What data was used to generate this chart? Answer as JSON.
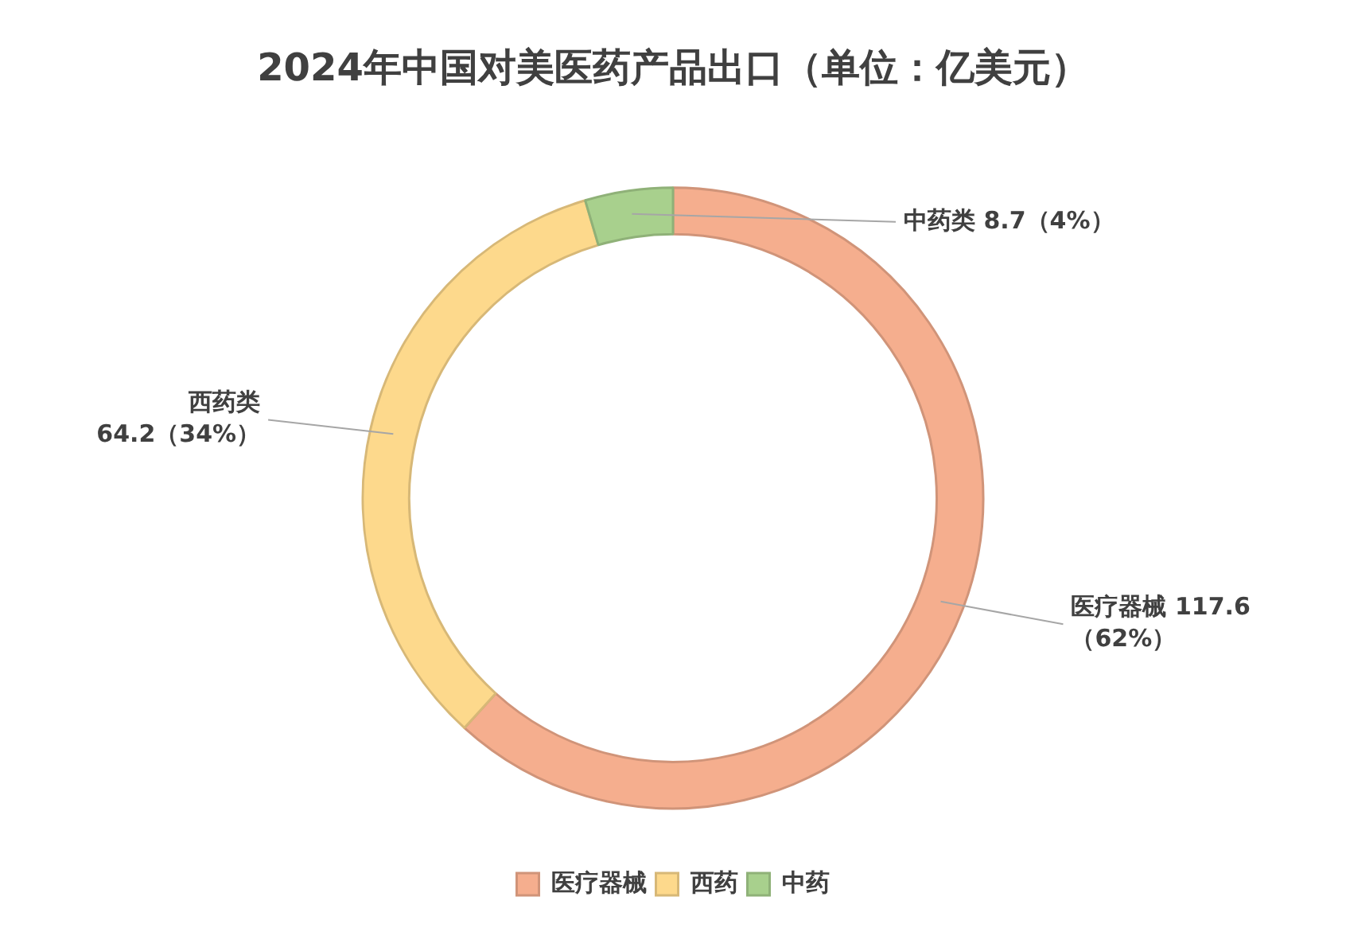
{
  "chart_data": {
    "type": "donut",
    "title": "2024年中国对美医药产品出口（单位：亿美元）",
    "categories": [
      "医疗器械",
      "西药",
      "中药"
    ],
    "values": [
      117.6,
      64.2,
      8.7
    ],
    "colors": [
      "#f5ae8e",
      "#fdd98c",
      "#a8d08d"
    ],
    "value_labels": [
      "医疗器械 117.6\n（62%）",
      "西药类\n64.2（34%）",
      "中药类 8.7（4%）"
    ],
    "legend": "bottom"
  }
}
